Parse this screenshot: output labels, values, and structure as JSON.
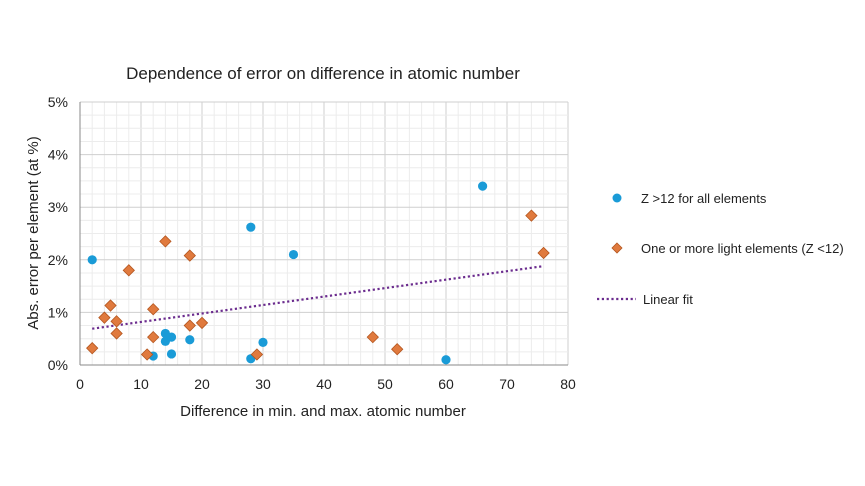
{
  "chart_data": {
    "type": "scatter",
    "title": "Dependence of error on difference in atomic number",
    "xlabel": "Difference in min. and max. atomic number",
    "ylabel": "Abs. error per element (at %)",
    "xlim": [
      0,
      80
    ],
    "ylim": [
      0,
      5
    ],
    "x_ticks": [
      "0",
      "10",
      "20",
      "30",
      "40",
      "50",
      "60",
      "70",
      "80"
    ],
    "y_ticks": [
      "0%",
      "1%",
      "2%",
      "3%",
      "4%",
      "5%"
    ],
    "grid": true,
    "legend_position": "right",
    "series": [
      {
        "name": "Z >12 for all elements",
        "marker": "circle",
        "color": "#1a9bd7",
        "points": [
          [
            2,
            2.0
          ],
          [
            12,
            0.17
          ],
          [
            14,
            0.6
          ],
          [
            14,
            0.45
          ],
          [
            15,
            0.53
          ],
          [
            15,
            0.21
          ],
          [
            18,
            0.48
          ],
          [
            28,
            2.62
          ],
          [
            28,
            0.12
          ],
          [
            30,
            0.43
          ],
          [
            35,
            2.1
          ],
          [
            60,
            0.1
          ],
          [
            66,
            3.4
          ]
        ]
      },
      {
        "name": "One or more light elements (Z <12)",
        "marker": "diamond",
        "color": "#e07a3e",
        "points": [
          [
            2,
            0.32
          ],
          [
            4,
            0.9
          ],
          [
            5,
            1.13
          ],
          [
            6,
            0.83
          ],
          [
            6,
            0.6
          ],
          [
            8,
            1.8
          ],
          [
            11,
            0.2
          ],
          [
            12,
            0.53
          ],
          [
            12,
            1.06
          ],
          [
            14,
            2.35
          ],
          [
            18,
            2.08
          ],
          [
            18,
            0.75
          ],
          [
            20,
            0.8
          ],
          [
            29,
            0.2
          ],
          [
            48,
            0.53
          ],
          [
            52,
            0.3
          ],
          [
            74,
            2.84
          ],
          [
            76,
            2.13
          ]
        ]
      },
      {
        "name": "Linear fit",
        "style": "dotted-line",
        "color": "#6b2c8e",
        "points": [
          [
            2,
            0.69
          ],
          [
            76,
            1.88
          ]
        ]
      }
    ]
  }
}
